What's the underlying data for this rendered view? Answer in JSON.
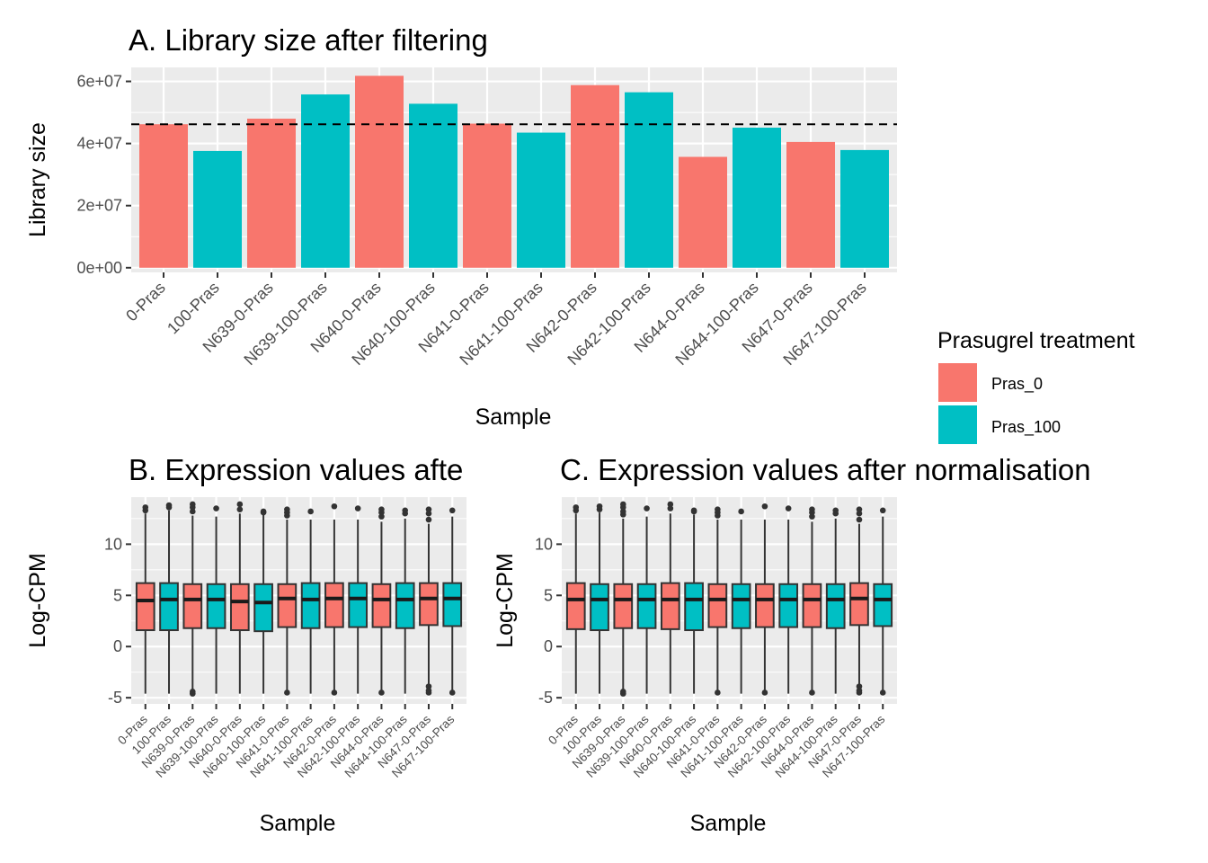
{
  "legend": {
    "title": "Prasugrel treatment",
    "items": [
      {
        "label": "Pras_0",
        "color": "#F8766D"
      },
      {
        "label": "Pras_100",
        "color": "#00BFC4"
      }
    ]
  },
  "chart_data": [
    {
      "type": "bar",
      "title": "A. Library size after filtering",
      "xlabel": "Sample",
      "ylabel": "Library size",
      "ylim": [
        -1500000,
        64500000
      ],
      "yticks": [
        "0e+00",
        "2e+07",
        "4e+07",
        "6e+07"
      ],
      "ytick_values": [
        0,
        20000000,
        40000000,
        60000000
      ],
      "reference_line": 46200000,
      "categories": [
        "0-Pras",
        "100-Pras",
        "N639-0-Pras",
        "N639-100-Pras",
        "N640-0-Pras",
        "N640-100-Pras",
        "N641-0-Pras",
        "N641-100-Pras",
        "N642-0-Pras",
        "N642-100-Pras",
        "N644-0-Pras",
        "N644-100-Pras",
        "N647-0-Pras",
        "N647-100-Pras"
      ],
      "values": [
        46200000,
        37600000,
        48000000,
        55800000,
        61800000,
        52800000,
        46400000,
        43500000,
        58800000,
        56500000,
        35700000,
        45100000,
        40500000,
        37900000
      ],
      "groups": [
        "Pras_0",
        "Pras_100",
        "Pras_0",
        "Pras_100",
        "Pras_0",
        "Pras_100",
        "Pras_0",
        "Pras_100",
        "Pras_0",
        "Pras_100",
        "Pras_0",
        "Pras_100",
        "Pras_0",
        "Pras_100"
      ],
      "grid": true
    },
    {
      "type": "box",
      "title": "B. Expression values afte",
      "xlabel": "Sample",
      "ylabel": "Log-CPM",
      "ylim": [
        -5.6,
        14.6
      ],
      "yticks": [
        "-5",
        "0",
        "5",
        "10"
      ],
      "ytick_values": [
        -5,
        0,
        5,
        10
      ],
      "categories": [
        "0-Pras",
        "100-Pras",
        "N639-0-Pras",
        "N639-100-Pras",
        "N640-0-Pras",
        "N640-100-Pras",
        "N641-0-Pras",
        "N641-100-Pras",
        "N642-0-Pras",
        "N642-100-Pras",
        "N644-0-Pras",
        "N644-100-Pras",
        "N647-0-Pras",
        "N647-100-Pras"
      ],
      "groups": [
        "Pras_0",
        "Pras_100",
        "Pras_0",
        "Pras_100",
        "Pras_0",
        "Pras_100",
        "Pras_0",
        "Pras_100",
        "Pras_0",
        "Pras_100",
        "Pras_0",
        "Pras_100",
        "Pras_0",
        "Pras_100"
      ],
      "boxes": [
        {
          "lower": -4.6,
          "q1": 1.6,
          "median": 4.5,
          "q3": 6.2,
          "upper": 13.0,
          "outliers": [
            13.3,
            13.6
          ]
        },
        {
          "lower": -4.6,
          "q1": 1.6,
          "median": 4.6,
          "q3": 6.2,
          "upper": 13.3,
          "outliers": [
            13.6,
            13.8
          ]
        },
        {
          "lower": -4.4,
          "q1": 1.8,
          "median": 4.6,
          "q3": 6.1,
          "upper": 12.8,
          "outliers": [
            13.2,
            13.6,
            13.9,
            -4.6,
            -4.4
          ]
        },
        {
          "lower": -4.6,
          "q1": 1.8,
          "median": 4.6,
          "q3": 6.1,
          "upper": 12.7,
          "outliers": [
            13.5
          ]
        },
        {
          "lower": -4.6,
          "q1": 1.6,
          "median": 4.4,
          "q3": 6.1,
          "upper": 13.0,
          "outliers": [
            13.4,
            13.9
          ]
        },
        {
          "lower": -4.6,
          "q1": 1.5,
          "median": 4.3,
          "q3": 6.1,
          "upper": 12.9,
          "outliers": [
            13.1,
            13.2
          ]
        },
        {
          "lower": -4.3,
          "q1": 1.9,
          "median": 4.7,
          "q3": 6.1,
          "upper": 12.4,
          "outliers": [
            12.8,
            13.1,
            13.4,
            -4.5
          ]
        },
        {
          "lower": -4.6,
          "q1": 1.8,
          "median": 4.6,
          "q3": 6.2,
          "upper": 12.4,
          "outliers": [
            13.2
          ]
        },
        {
          "lower": -4.4,
          "q1": 1.9,
          "median": 4.7,
          "q3": 6.2,
          "upper": 12.4,
          "outliers": [
            13.7,
            -4.5
          ]
        },
        {
          "lower": -4.6,
          "q1": 1.9,
          "median": 4.7,
          "q3": 6.2,
          "upper": 12.4,
          "outliers": [
            13.5
          ]
        },
        {
          "lower": -4.4,
          "q1": 1.9,
          "median": 4.6,
          "q3": 6.1,
          "upper": 12.2,
          "outliers": [
            12.7,
            13.1,
            13.4,
            -4.5
          ]
        },
        {
          "lower": -4.6,
          "q1": 1.8,
          "median": 4.6,
          "q3": 6.2,
          "upper": 12.5,
          "outliers": [
            13.0,
            13.3
          ]
        },
        {
          "lower": -3.9,
          "q1": 2.1,
          "median": 4.7,
          "q3": 6.2,
          "upper": 12.0,
          "outliers": [
            12.4,
            13.0,
            13.4,
            -3.9,
            -4.3,
            -4.5
          ]
        },
        {
          "lower": -4.4,
          "q1": 2.0,
          "median": 4.7,
          "q3": 6.2,
          "upper": 12.7,
          "outliers": [
            13.3,
            -4.5
          ]
        }
      ],
      "grid": true
    },
    {
      "type": "box",
      "title": "C. Expression values after normalisation",
      "xlabel": "Sample",
      "ylabel": "Log-CPM",
      "ylim": [
        -5.6,
        14.6
      ],
      "yticks": [
        "-5",
        "0",
        "5",
        "10"
      ],
      "ytick_values": [
        -5,
        0,
        5,
        10
      ],
      "categories": [
        "0-Pras",
        "100-Pras",
        "N639-0-Pras",
        "N639-100-Pras",
        "N640-0-Pras",
        "N640-100-Pras",
        "N641-0-Pras",
        "N641-100-Pras",
        "N642-0-Pras",
        "N642-100-Pras",
        "N644-0-Pras",
        "N644-100-Pras",
        "N647-0-Pras",
        "N647-100-Pras"
      ],
      "groups": [
        "Pras_0",
        "Pras_100",
        "Pras_0",
        "Pras_100",
        "Pras_0",
        "Pras_100",
        "Pras_0",
        "Pras_100",
        "Pras_0",
        "Pras_100",
        "Pras_0",
        "Pras_100",
        "Pras_0",
        "Pras_100"
      ],
      "boxes": [
        {
          "lower": -4.6,
          "q1": 1.7,
          "median": 4.6,
          "q3": 6.2,
          "upper": 13.0,
          "outliers": [
            13.3,
            13.6
          ]
        },
        {
          "lower": -4.6,
          "q1": 1.6,
          "median": 4.6,
          "q3": 6.1,
          "upper": 13.1,
          "outliers": [
            13.4,
            13.7
          ]
        },
        {
          "lower": -4.4,
          "q1": 1.8,
          "median": 4.6,
          "q3": 6.1,
          "upper": 12.5,
          "outliers": [
            12.9,
            13.2,
            13.6,
            13.9,
            -4.6,
            -4.4
          ]
        },
        {
          "lower": -4.6,
          "q1": 1.8,
          "median": 4.6,
          "q3": 6.1,
          "upper": 12.7,
          "outliers": [
            13.5
          ]
        },
        {
          "lower": -4.6,
          "q1": 1.7,
          "median": 4.6,
          "q3": 6.2,
          "upper": 13.0,
          "outliers": [
            13.5,
            13.9
          ]
        },
        {
          "lower": -4.6,
          "q1": 1.6,
          "median": 4.6,
          "q3": 6.2,
          "upper": 12.9,
          "outliers": [
            13.2,
            13.3
          ]
        },
        {
          "lower": -4.3,
          "q1": 1.9,
          "median": 4.6,
          "q3": 6.1,
          "upper": 12.4,
          "outliers": [
            12.8,
            13.1,
            13.4,
            -4.5
          ]
        },
        {
          "lower": -4.6,
          "q1": 1.8,
          "median": 4.6,
          "q3": 6.1,
          "upper": 12.4,
          "outliers": [
            13.2
          ]
        },
        {
          "lower": -4.4,
          "q1": 1.9,
          "median": 4.6,
          "q3": 6.1,
          "upper": 12.4,
          "outliers": [
            13.7,
            -4.5
          ]
        },
        {
          "lower": -4.6,
          "q1": 1.9,
          "median": 4.6,
          "q3": 6.1,
          "upper": 12.4,
          "outliers": [
            13.5
          ]
        },
        {
          "lower": -4.4,
          "q1": 1.9,
          "median": 4.6,
          "q3": 6.1,
          "upper": 12.2,
          "outliers": [
            12.7,
            13.1,
            13.4,
            -4.5
          ]
        },
        {
          "lower": -4.6,
          "q1": 1.8,
          "median": 4.6,
          "q3": 6.1,
          "upper": 12.5,
          "outliers": [
            13.0,
            13.3
          ]
        },
        {
          "lower": -3.9,
          "q1": 2.1,
          "median": 4.7,
          "q3": 6.2,
          "upper": 12.0,
          "outliers": [
            12.4,
            13.0,
            13.4,
            -3.9,
            -4.3,
            -4.5
          ]
        },
        {
          "lower": -4.4,
          "q1": 2.0,
          "median": 4.6,
          "q3": 6.1,
          "upper": 12.7,
          "outliers": [
            13.3,
            -4.5
          ]
        }
      ],
      "grid": true
    }
  ]
}
